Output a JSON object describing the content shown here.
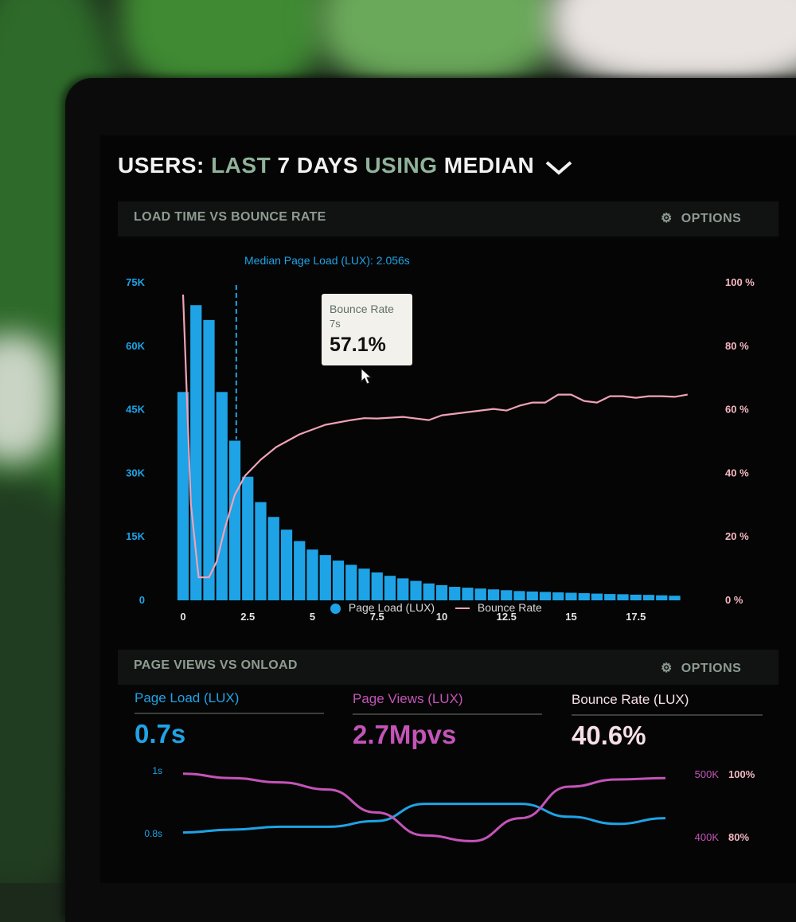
{
  "header": {
    "part1": "USERS:",
    "part2": "LAST 7 DAYS",
    "part3": "USING",
    "part4": "MEDIAN",
    "caret": "⌄"
  },
  "panel1": {
    "title": "LOAD TIME VS BOUNCE RATE",
    "options_icon": "gear-icon",
    "options_label": "OPTIONS",
    "median_label": "Median Page Load (LUX): 2.056s",
    "tooltip": {
      "title": "Bounce Rate",
      "subtitle": "7s",
      "value": "57.1%"
    },
    "legend": {
      "bars": "Page Load (LUX)",
      "line": "Bounce Rate"
    }
  },
  "panel2": {
    "title": "PAGE VIEWS VS ONLOAD",
    "options_icon": "gear-icon",
    "options_label": "OPTIONS",
    "stats": [
      {
        "label": "Page Load (LUX)",
        "value": "0.7s",
        "color": "#1fa3e6"
      },
      {
        "label": "Page Views (LUX)",
        "value": "2.7Mpvs",
        "color": "#c454b8"
      },
      {
        "label": "Bounce Rate (LUX)",
        "value": "40.6%",
        "color": "#f7dfe6"
      }
    ]
  },
  "colors": {
    "blue": "#1ea3e6",
    "pink": "#f0a2b6",
    "purple": "#c454b8",
    "muted": "#8e9b92"
  },
  "chart_data": [
    {
      "type": "bar",
      "title": "LOAD TIME VS BOUNCE RATE",
      "x_ticks": [
        "0",
        "2.5",
        "5",
        "7.5",
        "10",
        "12.5",
        "15",
        "17.5"
      ],
      "y_left_ticks": [
        "0",
        "15K",
        "30K",
        "45K",
        "60K",
        "75K"
      ],
      "y_right_ticks": [
        "0 %",
        "20 %",
        "40 %",
        "60 %",
        "80 %",
        "100 %"
      ],
      "ylim_left": [
        0,
        75000
      ],
      "ylim_right": [
        0,
        100
      ],
      "xlim": [
        0,
        20
      ],
      "bar_width": 0.5,
      "series": [
        {
          "name": "Page Load (LUX)",
          "type": "bar",
          "color": "#1ea3e6",
          "x": [
            0,
            0.5,
            1,
            1.5,
            2,
            2.5,
            3,
            3.5,
            4,
            4.5,
            5,
            5.5,
            6,
            6.5,
            7,
            7.5,
            8,
            8.5,
            9,
            9.5,
            10,
            10.5,
            11,
            11.5,
            12,
            12.5,
            13,
            13.5,
            14,
            14.5,
            15,
            15.5,
            16,
            16.5,
            17,
            17.5,
            18,
            18.5,
            19
          ],
          "values": [
            49000,
            69500,
            66000,
            49000,
            37500,
            29000,
            23000,
            19500,
            16500,
            13800,
            11800,
            10500,
            9200,
            8200,
            7300,
            6400,
            5600,
            5000,
            4400,
            3800,
            3400,
            3000,
            2800,
            2600,
            2400,
            2200,
            2000,
            1900,
            1800,
            1700,
            1600,
            1500,
            1400,
            1300,
            1250,
            1150,
            1100,
            1000,
            900
          ]
        },
        {
          "name": "Bounce Rate",
          "type": "line",
          "color": "#f0a2b6",
          "x": [
            0,
            0.3,
            0.6,
            1,
            1.3,
            1.6,
            2,
            2.4,
            3,
            3.6,
            4.5,
            5.5,
            6.5,
            7,
            7.5,
            8.5,
            9.5,
            10,
            10.5,
            11.5,
            12,
            12.5,
            13,
            13.5,
            14,
            14.5,
            15,
            15.5,
            16,
            16.5,
            17,
            17.5,
            18,
            18.5,
            19,
            19.5
          ],
          "values": [
            96,
            30,
            7,
            7,
            12,
            22,
            33,
            39,
            44,
            48,
            52,
            55,
            56.5,
            57.1,
            57,
            57.5,
            56.5,
            58,
            58.5,
            59.5,
            60,
            59.5,
            61,
            62,
            62,
            64.5,
            64.5,
            62.5,
            62,
            64,
            64,
            63.5,
            64,
            64,
            63.8,
            64.5
          ]
        }
      ],
      "annotations": [
        {
          "type": "vline",
          "x": 2.056,
          "text": "Median Page Load (LUX): 2.056s"
        },
        {
          "type": "tooltip",
          "x": 7,
          "series": "Bounce Rate",
          "text": "57.1%"
        }
      ],
      "legend": [
        "Page Load (LUX)",
        "Bounce Rate"
      ]
    },
    {
      "type": "line",
      "title": "PAGE VIEWS VS ONLOAD",
      "y_left_ticks": [
        "1s",
        "0.8s"
      ],
      "y_right_ticks_views": [
        "500K",
        "400K"
      ],
      "y_right_ticks_pct": [
        "100%",
        "80%"
      ],
      "series": [
        {
          "name": "Page Load (LUX)",
          "color": "#1ea3e6",
          "x": [
            0,
            1,
            2,
            3,
            4,
            5,
            6,
            7,
            8,
            9,
            10
          ],
          "values": [
            0.58,
            0.6,
            0.62,
            0.62,
            0.66,
            0.78,
            0.78,
            0.78,
            0.69,
            0.64,
            0.68
          ]
        },
        {
          "name": "Page Views (LUX)",
          "color": "#c454b8",
          "x": [
            0,
            1,
            2,
            3,
            4,
            5,
            6,
            7,
            8,
            9,
            10
          ],
          "values": [
            0.99,
            0.96,
            0.93,
            0.88,
            0.72,
            0.56,
            0.52,
            0.68,
            0.9,
            0.95,
            0.96
          ]
        }
      ]
    }
  ]
}
